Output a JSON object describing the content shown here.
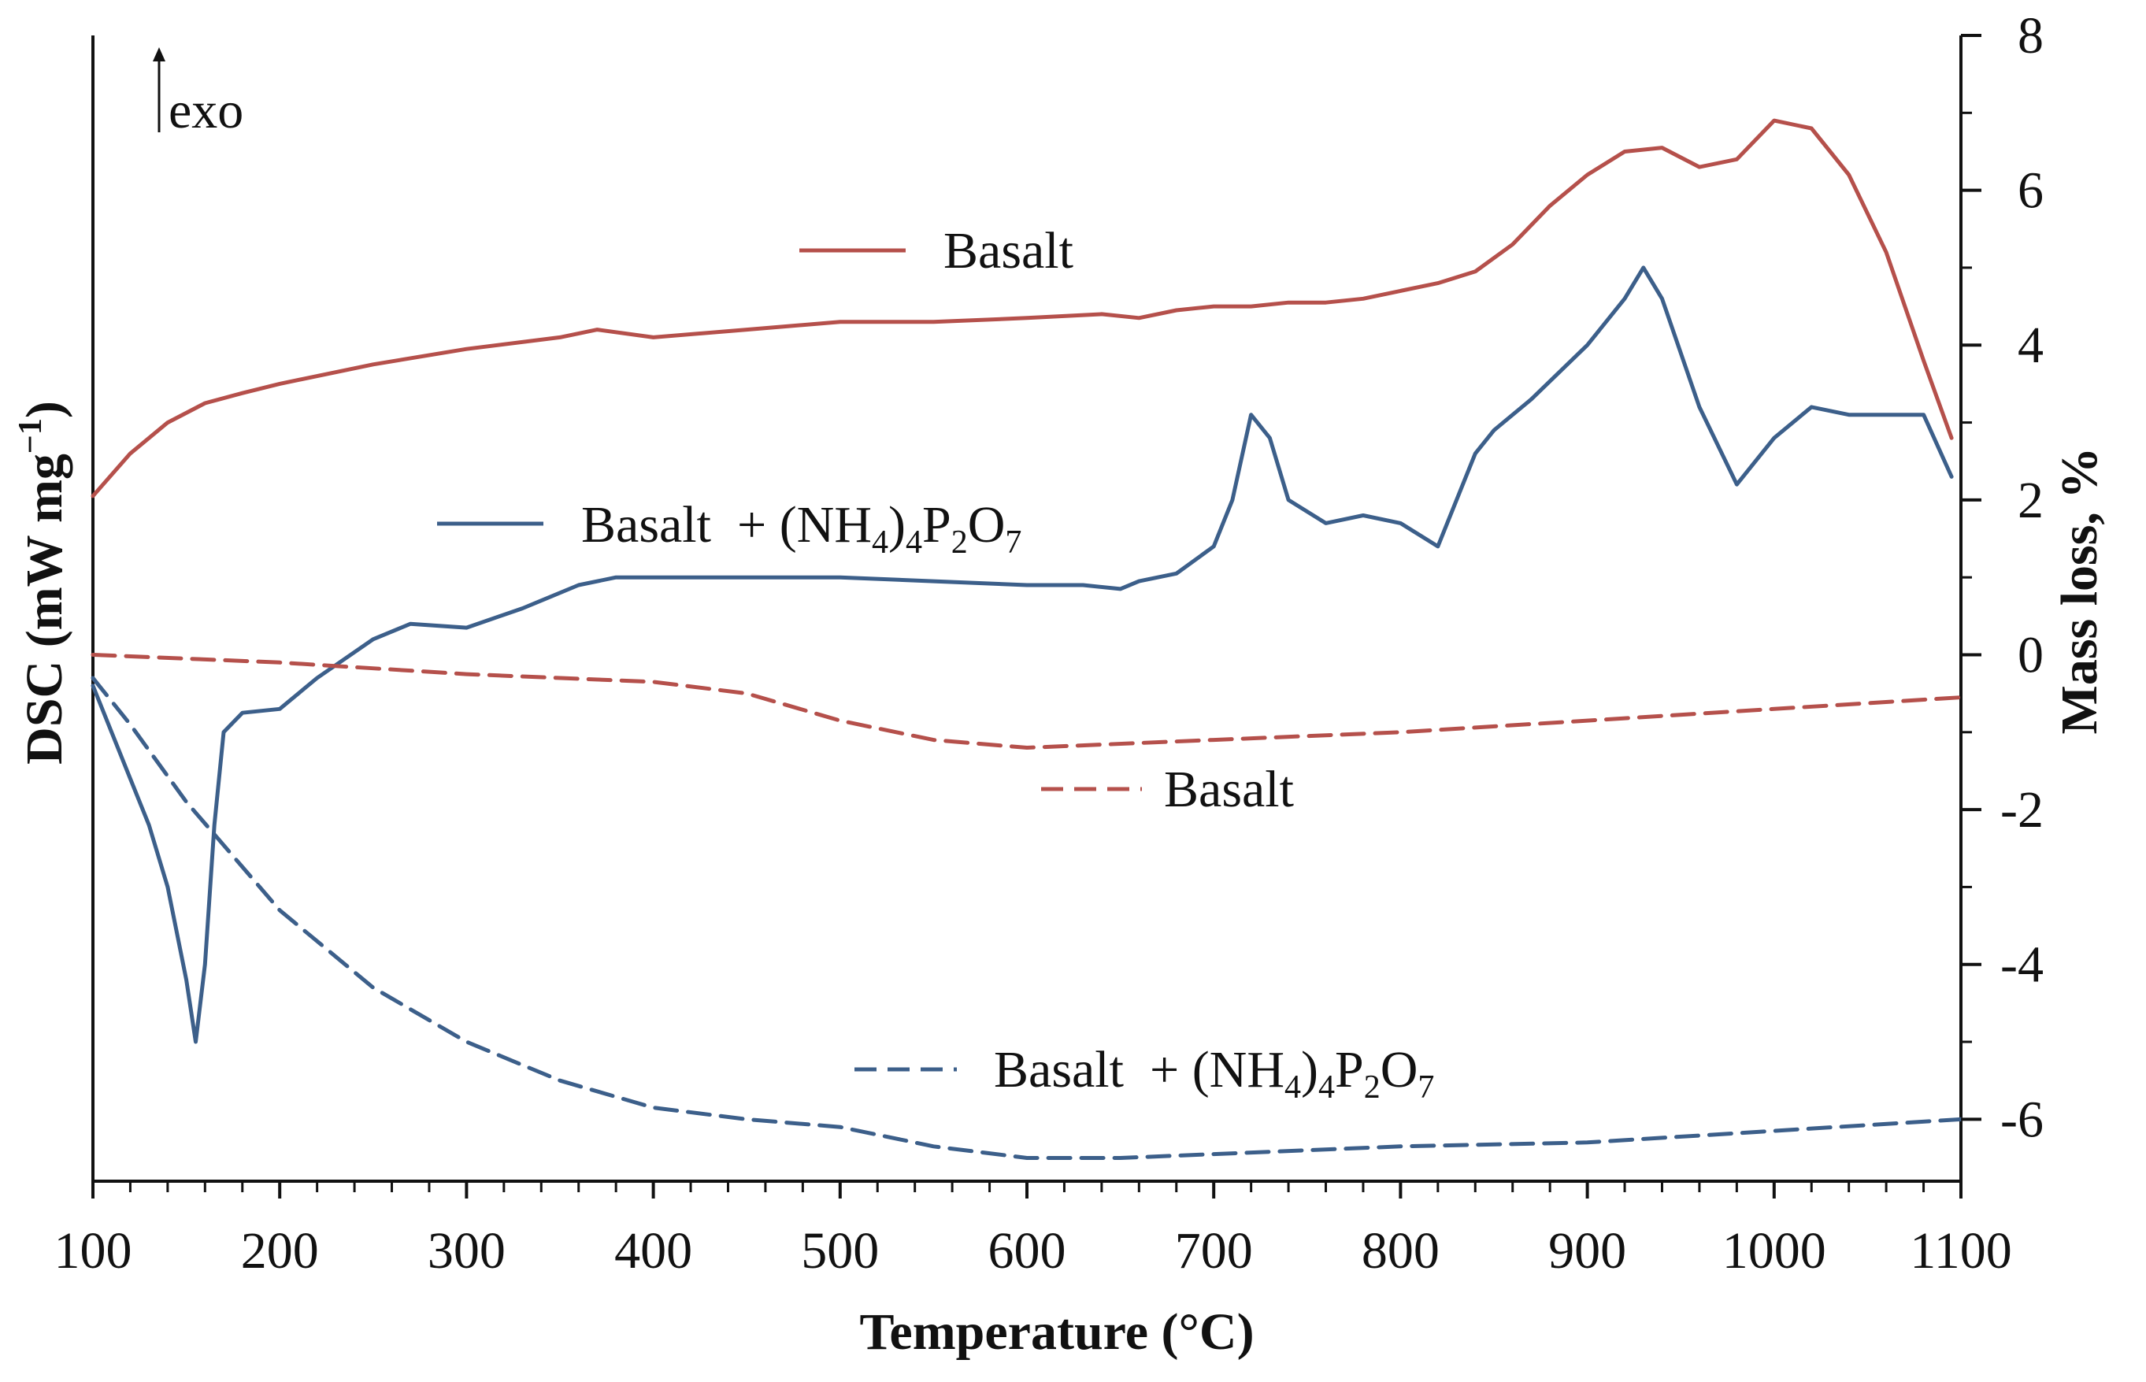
{
  "chart_data": {
    "type": "line",
    "xlabel": "Temperature (°C)",
    "ylabel_left": "DSC (mW mg",
    "ylabel_left_sup": "−1",
    "ylabel_left_close": ")",
    "ylabel_right": "Mass loss, %",
    "exo_label": "exo",
    "xlim": [
      100,
      1100
    ],
    "y_right_lim": [
      -6.8,
      8
    ],
    "x_ticks": [
      100,
      200,
      300,
      400,
      500,
      600,
      700,
      800,
      900,
      1000,
      1100
    ],
    "y_right_ticks": [
      8,
      6,
      4,
      2,
      0,
      -2,
      -4,
      -6
    ],
    "y_left_ticks_shown": false,
    "series": [
      {
        "name": "Basalt",
        "kind": "DSC",
        "axis": "left",
        "style": "solid",
        "color": "#b5504b",
        "label_parts": {
          "base": "Basalt"
        },
        "x": [
          100,
          120,
          140,
          160,
          180,
          200,
          250,
          300,
          350,
          370,
          400,
          450,
          500,
          550,
          600,
          640,
          660,
          680,
          700,
          720,
          740,
          760,
          780,
          800,
          820,
          840,
          860,
          880,
          900,
          920,
          940,
          960,
          980,
          1000,
          1020,
          1040,
          1060,
          1080,
          1095
        ],
        "values": [
          2.05,
          2.6,
          3.0,
          3.25,
          3.38,
          3.5,
          3.75,
          3.95,
          4.1,
          4.2,
          4.1,
          4.2,
          4.3,
          4.3,
          4.35,
          4.4,
          4.35,
          4.45,
          4.5,
          4.5,
          4.55,
          4.55,
          4.6,
          4.7,
          4.8,
          4.95,
          5.3,
          5.8,
          6.2,
          6.5,
          6.55,
          6.3,
          6.4,
          6.9,
          6.8,
          6.2,
          5.2,
          3.8,
          2.8
        ]
      },
      {
        "name": "Basalt + (NH4)4P2O7",
        "kind": "DSC",
        "axis": "left",
        "style": "solid",
        "color": "#3c5f8a",
        "label_parts": {
          "base": "Basalt  + (NH",
          "s1": "4",
          "m1": ")",
          "s2": "4",
          "m2": "P",
          "s3": "2",
          "m3": "O",
          "s4": "7"
        },
        "x": [
          100,
          110,
          120,
          130,
          140,
          150,
          155,
          160,
          165,
          170,
          180,
          200,
          220,
          250,
          270,
          300,
          330,
          360,
          380,
          400,
          450,
          500,
          550,
          600,
          630,
          650,
          660,
          680,
          700,
          710,
          720,
          730,
          740,
          760,
          780,
          800,
          820,
          840,
          850,
          870,
          900,
          920,
          930,
          940,
          960,
          980,
          1000,
          1020,
          1040,
          1060,
          1080,
          1095
        ],
        "values": [
          -0.4,
          -1.0,
          -1.6,
          -2.2,
          -3.0,
          -4.2,
          -5.0,
          -4.0,
          -2.2,
          -1.0,
          -0.75,
          -0.7,
          -0.3,
          0.2,
          0.4,
          0.35,
          0.6,
          0.9,
          1.0,
          1.0,
          1.0,
          1.0,
          0.95,
          0.9,
          0.9,
          0.85,
          0.95,
          1.05,
          1.4,
          2.0,
          3.1,
          2.8,
          2.0,
          1.7,
          1.8,
          1.7,
          1.4,
          2.6,
          2.9,
          3.3,
          4.0,
          4.6,
          5.0,
          4.6,
          3.2,
          2.2,
          2.8,
          3.2,
          3.1,
          3.1,
          3.1,
          2.3
        ]
      },
      {
        "name": "Basalt",
        "kind": "TG",
        "axis": "right",
        "style": "dashed",
        "color": "#b5504b",
        "label_parts": {
          "base": "Basalt"
        },
        "x": [
          100,
          200,
          300,
          400,
          450,
          500,
          550,
          600,
          700,
          800,
          900,
          1000,
          1100
        ],
        "values": [
          0.0,
          -0.1,
          -0.25,
          -0.35,
          -0.5,
          -0.85,
          -1.1,
          -1.2,
          -1.1,
          -1.0,
          -0.85,
          -0.7,
          -0.55
        ]
      },
      {
        "name": "Basalt + (NH4)4P2O7",
        "kind": "TG",
        "axis": "right",
        "style": "dashed",
        "color": "#3c5f8a",
        "label_parts": {
          "base": "Basalt  + (NH",
          "s1": "4",
          "m1": ")",
          "s2": "4",
          "m2": "P",
          "s3": "2",
          "m3": "O",
          "s4": "7"
        },
        "x": [
          100,
          120,
          150,
          200,
          250,
          300,
          350,
          400,
          450,
          500,
          550,
          600,
          650,
          700,
          800,
          900,
          1000,
          1100
        ],
        "values": [
          -0.3,
          -0.9,
          -1.9,
          -3.3,
          -4.3,
          -5.0,
          -5.5,
          -5.85,
          -6.0,
          -6.1,
          -6.35,
          -6.5,
          -6.5,
          -6.45,
          -6.35,
          -6.3,
          -6.15,
          -6.0
        ]
      }
    ]
  }
}
